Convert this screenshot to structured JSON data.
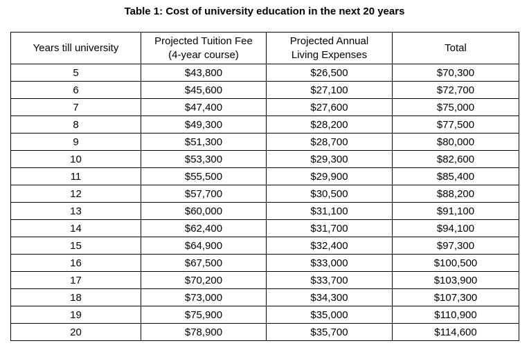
{
  "page": {
    "title": "Table 1: Cost of university education in the next 20 years"
  },
  "colors": {
    "text": "#000000",
    "background": "#ffffff",
    "border": "#000000"
  },
  "table": {
    "headers": [
      "Years till university",
      "Projected Tuition Fee\n(4-year course)",
      "Projected Annual\nLiving Expenses",
      "Total"
    ],
    "column_keys": [
      "years-till-university",
      "projected-tuition-fee",
      "projected-annual-living-expenses",
      "total"
    ],
    "rows": [
      [
        "5",
        "$43,800",
        "$26,500",
        "$70,300"
      ],
      [
        "6",
        "$45,600",
        "$27,100",
        "$72,700"
      ],
      [
        "7",
        "$47,400",
        "$27,600",
        "$75,000"
      ],
      [
        "8",
        "$49,300",
        "$28,200",
        "$77,500"
      ],
      [
        "9",
        "$51,300",
        "$28,700",
        "$80,000"
      ],
      [
        "10",
        "$53,300",
        "$29,300",
        "$82,600"
      ],
      [
        "11",
        "$55,500",
        "$29,900",
        "$85,400"
      ],
      [
        "12",
        "$57,700",
        "$30,500",
        "$88,200"
      ],
      [
        "13",
        "$60,000",
        "$31,100",
        "$91,100"
      ],
      [
        "14",
        "$62,400",
        "$31,700",
        "$94,100"
      ],
      [
        "15",
        "$64,900",
        "$32,400",
        "$97,300"
      ],
      [
        "16",
        "$67,500",
        "$33,000",
        "$100,500"
      ],
      [
        "17",
        "$70,200",
        "$33,700",
        "$103,900"
      ],
      [
        "18",
        "$73,000",
        "$34,300",
        "$107,300"
      ],
      [
        "19",
        "$75,900",
        "$35,000",
        "$110,900"
      ],
      [
        "20",
        "$78,900",
        "$35,700",
        "$114,600"
      ]
    ]
  }
}
